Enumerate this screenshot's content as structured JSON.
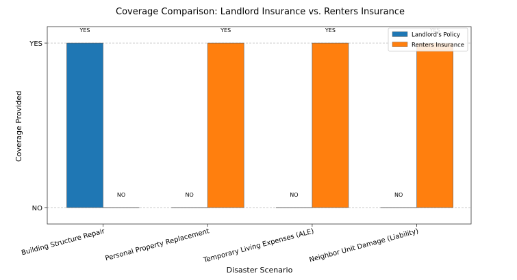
{
  "chart_data": {
    "type": "bar",
    "title": "Coverage Comparison: Landlord Insurance vs. Renters Insurance",
    "xlabel": "Disaster Scenario",
    "ylabel": "Coverage Provided",
    "categories": [
      "Building Structure Repair",
      "Personal Property Replacement",
      "Temporary Living Expenses (ALE)",
      "Neighbor Unit Damage (Liability)"
    ],
    "y_ticks": [
      "NO",
      "YES"
    ],
    "ylim": [
      -0.1,
      1.1
    ],
    "grid": "horizontal-dashed",
    "legend_position": "top-right",
    "series": [
      {
        "name": "Landlord's Policy",
        "color": "#1f77b4",
        "values": [
          1,
          0,
          0,
          0
        ],
        "labels": [
          "YES",
          "NO",
          "NO",
          "NO"
        ]
      },
      {
        "name": "Renters Insurance",
        "color": "#ff7f0e",
        "values": [
          0,
          1,
          1,
          1
        ],
        "labels": [
          "NO",
          "YES",
          "YES",
          "YES"
        ]
      }
    ]
  }
}
